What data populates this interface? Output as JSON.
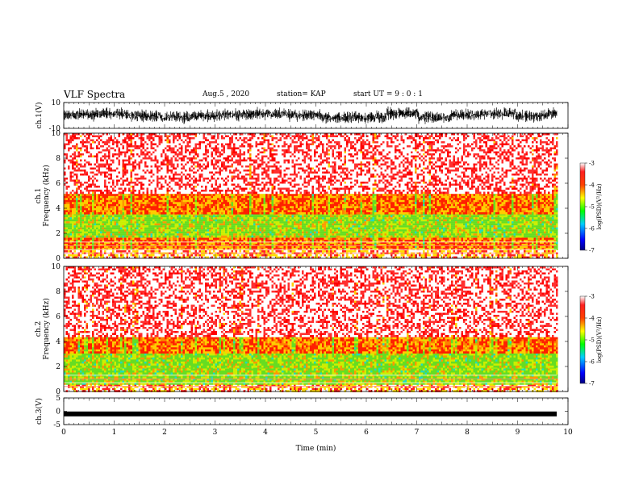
{
  "header": {
    "title": "VLF Spectra",
    "date": "Aug.5  , 2020",
    "station": "station= KAP",
    "start": "start  UT =   9 : 0  : 1"
  },
  "colors": {
    "background": "#ffffff",
    "spectrum_high": "#ff0000",
    "spectrum_mid": "#ffcc00",
    "spectrum_low": "#33dd33",
    "waveform": "#000000"
  },
  "chart_data": [
    {
      "type": "line",
      "name": "ch1-waveform",
      "ylabel": "ch.1(V)",
      "ylim": [
        -10,
        10
      ],
      "yticks": [
        "10",
        "-10"
      ],
      "xlim": [
        0,
        10
      ]
    },
    {
      "type": "heatmap",
      "name": "ch1-spectrogram",
      "ylabel": "ch.1\nFrequency  (kHz)",
      "ylabel_lines": [
        "ch.1",
        "Frequency  (kHz)"
      ],
      "ylim": [
        0,
        10
      ],
      "yticks": [
        "0",
        "2",
        "4",
        "6",
        "8",
        "10"
      ],
      "xlim": [
        0,
        10
      ],
      "colorbar": {
        "label": "log(PSD)(V²/Hz)",
        "ticks": [
          "-3",
          "-4",
          "-5",
          "-6",
          "-7"
        ],
        "range": [
          -7,
          -3
        ]
      },
      "bands_khz": [
        {
          "from": 0.0,
          "to": 0.8,
          "level": "mixed"
        },
        {
          "from": 0.8,
          "to": 1.8,
          "level": "mid"
        },
        {
          "from": 1.8,
          "to": 3.6,
          "level": "low"
        },
        {
          "from": 3.6,
          "to": 5.3,
          "level": "mid"
        },
        {
          "from": 5.3,
          "to": 10.0,
          "level": "high-sparse"
        }
      ]
    },
    {
      "type": "heatmap",
      "name": "ch2-spectrogram",
      "ylabel_lines": [
        "ch.2",
        "Frequency  (kHz)"
      ],
      "ylim": [
        0,
        10
      ],
      "yticks": [
        "0",
        "2",
        "4",
        "6",
        "8",
        "10"
      ],
      "xlim": [
        0,
        10
      ],
      "colorbar": {
        "label": "log(PSD)(V²/Hz)",
        "ticks": [
          "-3",
          "-4",
          "-5",
          "-6",
          "-7"
        ],
        "range": [
          -7,
          -3
        ]
      },
      "bands_khz": [
        {
          "from": 0.0,
          "to": 0.6,
          "level": "mixed"
        },
        {
          "from": 0.6,
          "to": 2.0,
          "level": "low"
        },
        {
          "from": 2.0,
          "to": 3.2,
          "level": "low"
        },
        {
          "from": 3.2,
          "to": 4.5,
          "level": "mid"
        },
        {
          "from": 4.5,
          "to": 10.0,
          "level": "high-sparse"
        }
      ]
    },
    {
      "type": "line",
      "name": "ch3-waveform",
      "ylabel": "ch.3(V)",
      "ylim": [
        -5,
        5
      ],
      "yticks": [
        "5",
        "0",
        "-5"
      ],
      "level": -1.0,
      "xlim": [
        0,
        10
      ]
    }
  ],
  "xaxis": {
    "label": "Time  (min)",
    "ticks": [
      "0",
      "1",
      "2",
      "3",
      "4",
      "5",
      "6",
      "7",
      "8",
      "9",
      "10"
    ],
    "range": [
      0,
      10
    ]
  }
}
